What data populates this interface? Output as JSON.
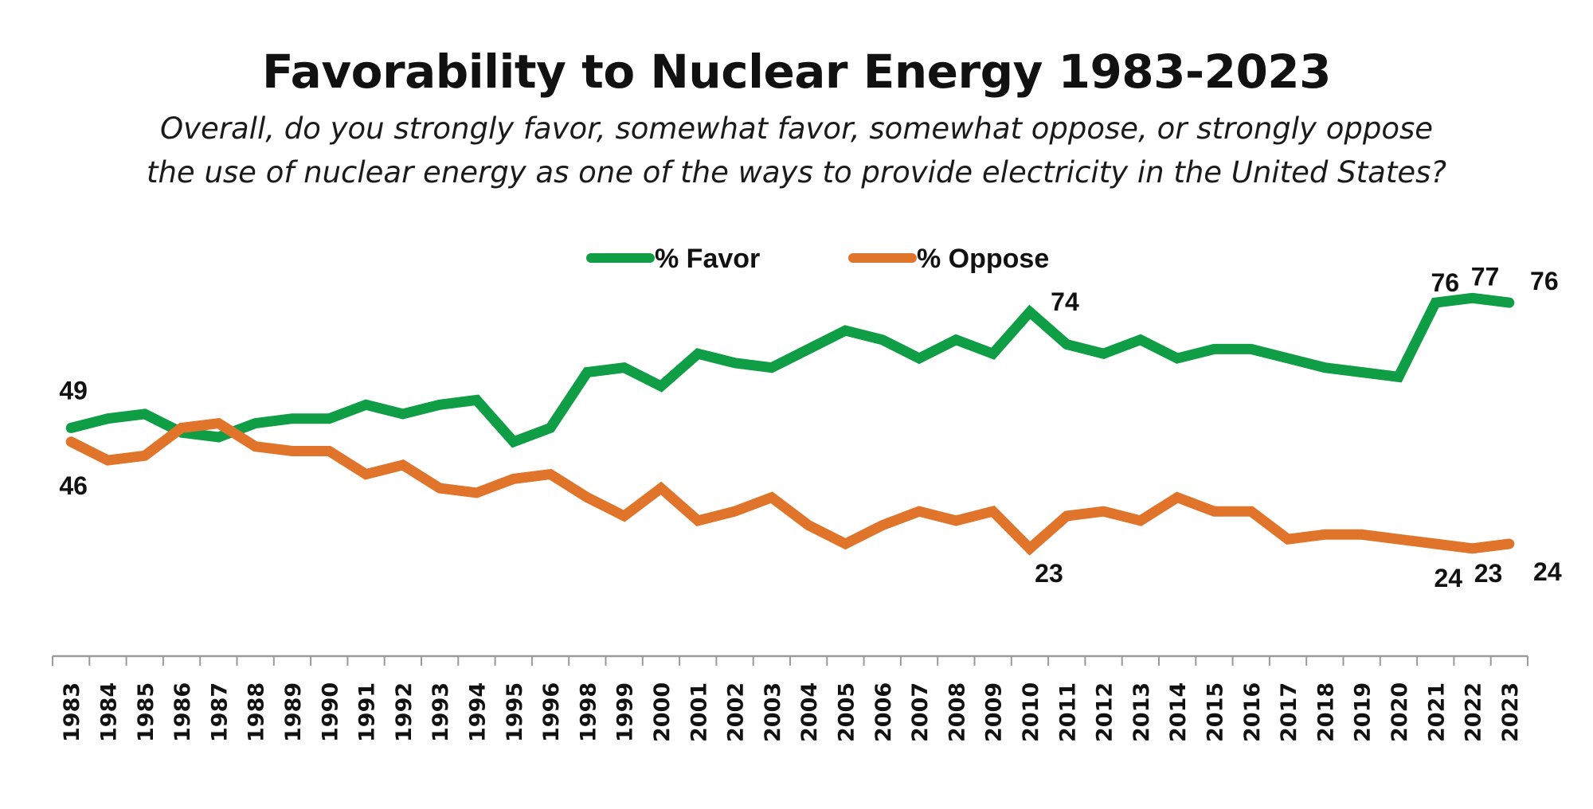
{
  "chart_data": {
    "type": "line",
    "title": "Favorability to Nuclear Energy 1983-2023",
    "subtitle": [
      "Overall, do you strongly favor, somewhat favor, somewhat oppose, or strongly oppose",
      "the use of nuclear energy as one of the ways to provide electricity in the United States?"
    ],
    "xlabel": "",
    "ylabel": "",
    "ylim": [
      15,
      85
    ],
    "grid": false,
    "legend_placement": "top-center",
    "categories": [
      "1983",
      "1984",
      "1985",
      "1986",
      "1987",
      "1988",
      "1989",
      "1990",
      "1991",
      "1992",
      "1993",
      "1994",
      "1995",
      "1996",
      "1998",
      "1999",
      "2000",
      "2001",
      "2002",
      "2003",
      "2004",
      "2005",
      "2006",
      "2007",
      "2008",
      "2009",
      "2010",
      "2011",
      "2012",
      "2013",
      "2014",
      "2015",
      "2016",
      "2017",
      "2018",
      "2019",
      "2020",
      "2021",
      "2022",
      "2023"
    ],
    "series": [
      {
        "name": "% Favor",
        "color": "#0f9d45",
        "values": [
          49,
          51,
          52,
          48,
          47,
          50,
          51,
          51,
          54,
          52,
          54,
          55,
          46,
          49,
          61,
          62,
          58,
          65,
          63,
          62,
          66,
          70,
          68,
          64,
          68,
          65,
          74,
          67,
          65,
          68,
          64,
          66,
          66,
          64,
          62,
          61,
          60,
          76,
          77,
          76
        ]
      },
      {
        "name": "% Oppose",
        "color": "#e0742a",
        "values": [
          46,
          42,
          43,
          49,
          50,
          45,
          44,
          44,
          39,
          41,
          36,
          35,
          38,
          39,
          34,
          30,
          36,
          29,
          31,
          34,
          28,
          24,
          28,
          31,
          29,
          31,
          23,
          30,
          31,
          29,
          34,
          31,
          31,
          25,
          26,
          26,
          25,
          24,
          23,
          24
        ]
      }
    ],
    "annotations": [
      {
        "series": "% Favor",
        "category": "1983",
        "text": "49"
      },
      {
        "series": "% Oppose",
        "category": "1983",
        "text": "46"
      },
      {
        "series": "% Favor",
        "category": "2010",
        "text": "74"
      },
      {
        "series": "% Oppose",
        "category": "2010",
        "text": "23"
      },
      {
        "series": "% Favor",
        "category": "2021",
        "text": "76"
      },
      {
        "series": "% Favor",
        "category": "2022",
        "text": "77"
      },
      {
        "series": "% Favor",
        "category": "2023",
        "text": "76"
      },
      {
        "series": "% Oppose",
        "category": "2021",
        "text": "24"
      },
      {
        "series": "% Oppose",
        "category": "2022",
        "text": "23"
      },
      {
        "series": "% Oppose",
        "category": "2023",
        "text": "24"
      }
    ]
  }
}
